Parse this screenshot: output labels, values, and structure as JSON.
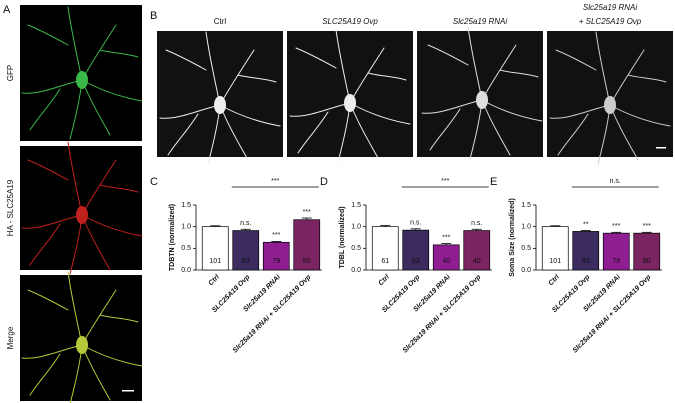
{
  "panels": {
    "A": {
      "letter": "A",
      "images": [
        "GFP",
        "HA - SLC25A19",
        "Merge"
      ]
    },
    "B": {
      "letter": "B",
      "images": [
        [
          "Ctrl"
        ],
        [
          "SLC25A19 Ovp"
        ],
        [
          "Slc25a19 RNAi"
        ],
        [
          "Slc25a19 RNAi",
          "+ SLC25A19 Ovp"
        ]
      ]
    }
  },
  "chart_data": [
    {
      "type": "bar",
      "letter": "C",
      "ylabel": "TDBTN (normalized)",
      "categories": [
        "Ctrl",
        "SLC25A19 Ovp",
        "Slc25a19 RNAi",
        "Slc25a19 RNAi + SLC25A19 Ovp"
      ],
      "values": [
        1.0,
        0.91,
        0.64,
        1.16
      ],
      "errors": [
        0.02,
        0.03,
        0.02,
        0.04
      ],
      "n_labels": [
        "101",
        "83",
        "79",
        "80"
      ],
      "sig_labels": [
        "",
        "n.s.",
        "***",
        "***"
      ],
      "bracket_label": "***",
      "colors": [
        "#ffffff",
        "#3b2b5e",
        "#8e1e92",
        "#7a2462"
      ],
      "ylim": [
        0,
        1.5
      ],
      "yticks": [
        {
          "value": 0,
          "label": "0.0"
        },
        0.5,
        {
          "value": 1,
          "label": "1.0"
        },
        1.5
      ]
    },
    {
      "type": "bar",
      "letter": "D",
      "ylabel": "TDBL (normalized)",
      "categories": [
        "Ctrl",
        "SLC25A19 Ovp",
        "Slc25a19 RNAi",
        "Slc25a19 RNAi + SLC25A19 Ovp"
      ],
      "values": [
        1.0,
        0.92,
        0.58,
        0.91
      ],
      "errors": [
        0.03,
        0.03,
        0.03,
        0.03
      ],
      "n_labels": [
        "61",
        "83",
        "40",
        "40"
      ],
      "sig_labels": [
        "",
        "n.s.",
        "***",
        "n.s."
      ],
      "bracket_label": "***",
      "colors": [
        "#ffffff",
        "#3b2b5e",
        "#8e1e92",
        "#7a2462"
      ],
      "ylim": [
        0,
        1.5
      ],
      "yticks": [
        {
          "value": 0,
          "label": "0.0"
        },
        0.5,
        {
          "value": 1,
          "label": "1.0"
        },
        1.5
      ]
    },
    {
      "type": "bar",
      "letter": "E",
      "ylabel": "Soma Size (normalized)",
      "categories": [
        "Ctrl",
        "SLC25A19 Ovp",
        "Slc25a19 RNAi",
        "Slc25a19 RNAi + SLC25A19 Ovp"
      ],
      "values": [
        1.0,
        0.89,
        0.85,
        0.85
      ],
      "errors": [
        0.02,
        0.02,
        0.02,
        0.02
      ],
      "n_labels": [
        "101",
        "83",
        "79",
        "80"
      ],
      "sig_labels": [
        "",
        "**",
        "***",
        "***"
      ],
      "bracket_label": "n.s.",
      "colors": [
        "#ffffff",
        "#3b2b5e",
        "#8e1e92",
        "#7a2462"
      ],
      "ylim": [
        0,
        1.5
      ],
      "yticks": [
        {
          "value": 0,
          "label": "0.0"
        },
        0.5,
        {
          "value": 1,
          "label": "1.0"
        },
        1.5
      ]
    }
  ]
}
